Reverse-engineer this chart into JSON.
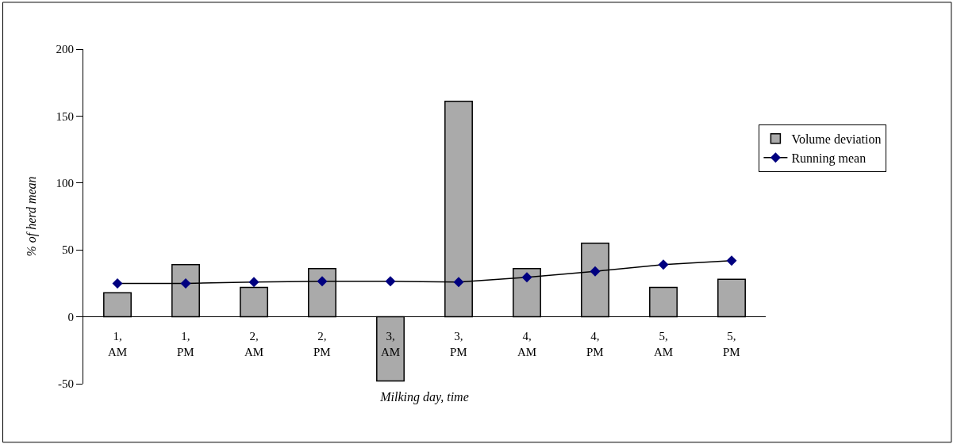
{
  "chart_data": {
    "type": "bar",
    "xlabel": "Milking day, time",
    "ylabel": "% of herd mean",
    "categories": [
      "1, AM",
      "1, PM",
      "2, AM",
      "2, PM",
      "3, AM",
      "3, PM",
      "4, AM",
      "4, PM",
      "5, AM",
      "5, PM"
    ],
    "series": [
      {
        "name": "Volume deviation",
        "color": "#aaaaaa",
        "values": [
          18,
          39,
          22,
          36,
          -48,
          161,
          36,
          55,
          22,
          28
        ]
      },
      {
        "name": "Running mean",
        "type": "line",
        "color": "#000080",
        "values": [
          25,
          25,
          26,
          26.5,
          26.5,
          26,
          29.5,
          34,
          39,
          42
        ]
      }
    ],
    "ylim": [
      -50,
      200
    ],
    "yticks": [
      -50,
      0,
      50,
      100,
      150,
      200
    ],
    "legend": "right",
    "marker": "diamond"
  }
}
